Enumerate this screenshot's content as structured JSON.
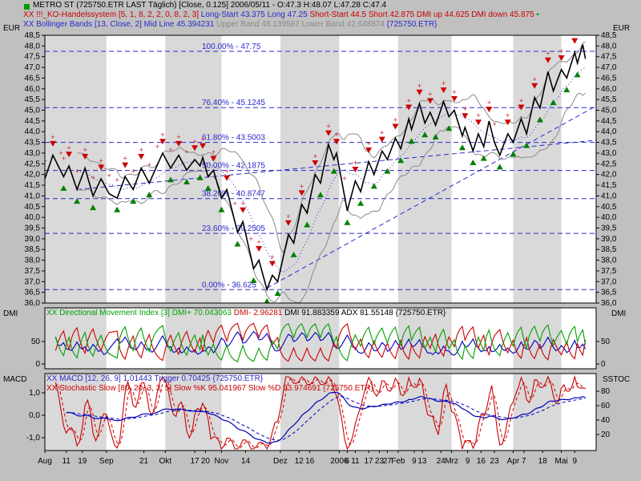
{
  "colors": {
    "background": "#c0c0c0",
    "plot_bg": "#ffffff",
    "stripe": "#d9d9d9",
    "price": "#000000",
    "bollinger_band": "#8a8a8a",
    "bollinger_mid": "#2929cc",
    "fib": "#2929cc",
    "trend": "#2929cc",
    "signal_green": "#008000",
    "signal_red": "#cc0000",
    "plus_mark": "#cc2222",
    "dmi_plus": "#00a000",
    "dmi_minus": "#cc0000",
    "adx": "#0000bb",
    "macd": "#0000bb",
    "trigger": "#0000bb",
    "stoch_k": "#cc0000",
    "stoch_d": "#cc0000",
    "marker_square": "#00a000"
  },
  "panels": {
    "main": {
      "left_label": "EUR",
      "right_label": "EUR"
    },
    "dmi": {
      "left_label": "DMI",
      "right_label": "DMI"
    },
    "macd": {
      "left_label": "MACD",
      "right_label": "SSTOC"
    }
  },
  "header": {
    "lines": {
      "price": {
        "segments": [
          {
            "text": "METRO ST (725750.ETR LAST Täglich) [Close, 0.125]  2006/05/11 - O:47.3 H:48.07 L:47.28 C:47.4",
            "color": "#000000"
          }
        ]
      },
      "system": {
        "segments": [
          {
            "text": "XX !!!_KO-Handelssystem [5, 1, 8, 2, 2, 0, 8, 2, 3] ",
            "color": "#cc0000"
          },
          {
            "text": "Long-Start 43.375 Long 47.25 ",
            "color": "#2929cc"
          },
          {
            "text": "Short-Start 44.5 Short 42.875 ",
            "color": "#cc0000"
          },
          {
            "text": "DMI up 44.625 ",
            "color": "#cc0000"
          },
          {
            "text": "DMI down 45.875 ",
            "color": "#cc0000"
          },
          {
            "text": "▪",
            "color": "#00a000"
          }
        ]
      },
      "bollinger": {
        "segments": [
          {
            "text": "XX Bollinger Bands [13, Close, 2] Mid Line 45.394231 ",
            "color": "#2929cc"
          },
          {
            "text": "Upper Band 48.139587 Lower Band 42.648874 ",
            "color": "#8a8a8a"
          },
          {
            "text": "{725750.ETR}",
            "color": "#2929cc"
          }
        ]
      },
      "dmi": {
        "segments": [
          {
            "text": "XX Directional Movement Index [3] DMI+ 70.043063 ",
            "color": "#00a000"
          },
          {
            "text": "DMI- 2.96281 ",
            "color": "#cc0000"
          },
          {
            "text": "DMI 91.883359 ADX 81.55148 ",
            "color": "#000000"
          },
          {
            "text": "{725750.ETR}",
            "color": "#000000"
          }
        ]
      },
      "macd": {
        "segments": [
          {
            "text": "XX MACD [12, 26, 9] 1.01443 Trigger 0.70425 {725750.ETR}",
            "color": "#2929cc"
          }
        ]
      },
      "stoch": {
        "segments": [
          {
            "text": "XX Stochastic Slow [80, 20, 3, 3, 5] Slow %K 95.041967 Slow %D 93.974691 {725750.ETR}",
            "color": "#cc0000"
          }
        ]
      }
    }
  },
  "chart_data": [
    {
      "type": "line",
      "title": "METRO ST daily close with KO-Handelssystem signals, Bollinger Bands [13,2] and Fibonacci retracements",
      "x_unit": "trading days Aug 2005 - Mai 2006",
      "ylabel": "EUR",
      "yticks": {
        "min": 36.0,
        "max": 48.5,
        "step": 0.5,
        "decimal": "comma"
      },
      "ohlc": {
        "date": "2006/05/11",
        "open": 47.3,
        "high": 48.07,
        "low": 47.28,
        "close": 47.4
      },
      "price_pivots": [
        [
          0,
          41.8
        ],
        [
          3,
          42.9
        ],
        [
          7,
          41.9
        ],
        [
          9,
          42.4
        ],
        [
          12,
          41.3
        ],
        [
          15,
          42.3
        ],
        [
          18,
          41.0
        ],
        [
          21,
          41.8
        ],
        [
          24,
          41.1
        ],
        [
          27,
          40.9
        ],
        [
          30,
          41.9
        ],
        [
          33,
          41.3
        ],
        [
          36,
          42.3
        ],
        [
          39,
          41.6
        ],
        [
          44,
          43.0
        ],
        [
          47,
          42.3
        ],
        [
          50,
          42.9
        ],
        [
          53,
          42.2
        ],
        [
          56,
          42.7
        ],
        [
          58,
          42.4
        ],
        [
          59,
          42.8
        ],
        [
          61,
          41.9
        ],
        [
          63,
          42.2
        ],
        [
          66,
          40.9
        ],
        [
          68,
          41.3
        ],
        [
          72,
          39.3
        ],
        [
          74,
          39.8
        ],
        [
          78,
          37.6
        ],
        [
          80,
          38.0
        ],
        [
          83,
          36.625
        ],
        [
          85,
          37.3
        ],
        [
          87,
          37.0
        ],
        [
          91,
          39.2
        ],
        [
          93,
          38.8
        ],
        [
          96,
          40.6
        ],
        [
          98,
          40.2
        ],
        [
          101,
          42.0
        ],
        [
          103,
          41.6
        ],
        [
          106,
          43.4
        ],
        [
          108,
          42.7
        ],
        [
          109,
          43.0
        ],
        [
          113,
          40.3
        ],
        [
          116,
          41.7
        ],
        [
          118,
          41.2
        ],
        [
          121,
          42.6
        ],
        [
          123,
          42.0
        ],
        [
          126,
          43.1
        ],
        [
          128,
          42.7
        ],
        [
          131,
          43.7
        ],
        [
          133,
          43.2
        ],
        [
          136,
          44.6
        ],
        [
          137,
          44.1
        ],
        [
          140,
          45.3
        ],
        [
          142,
          44.4
        ],
        [
          144,
          44.9
        ],
        [
          146,
          44.3
        ],
        [
          149,
          45.4
        ],
        [
          151,
          44.7
        ],
        [
          153,
          45.0
        ],
        [
          156,
          43.8
        ],
        [
          157,
          44.2
        ],
        [
          160,
          43.1
        ],
        [
          162,
          43.9
        ],
        [
          164,
          43.3
        ],
        [
          166,
          44.5
        ],
        [
          168,
          43.5
        ],
        [
          170,
          42.9
        ],
        [
          173,
          43.9
        ],
        [
          175,
          43.5
        ],
        [
          178,
          44.6
        ],
        [
          180,
          43.9
        ],
        [
          183,
          45.6
        ],
        [
          185,
          45.1
        ],
        [
          188,
          46.8
        ],
        [
          190,
          45.9
        ],
        [
          193,
          46.9
        ],
        [
          195,
          46.5
        ],
        [
          198,
          47.7
        ],
        [
          199,
          47.2
        ],
        [
          201,
          48.07
        ],
        [
          202,
          47.4
        ]
      ],
      "months": [
        {
          "name": "Aug",
          "start": 0,
          "end": 23,
          "shaded": true
        },
        {
          "name": "Sep",
          "start": 23,
          "end": 45,
          "shaded": false
        },
        {
          "name": "Okt",
          "start": 45,
          "end": 66,
          "shaded": true
        },
        {
          "name": "Nov",
          "start": 66,
          "end": 88,
          "shaded": false
        },
        {
          "name": "Dez",
          "start": 88,
          "end": 110,
          "shaded": true
        },
        {
          "name": "2006",
          "start": 110,
          "end": 132,
          "shaded": false
        },
        {
          "name": "Feb",
          "start": 132,
          "end": 152,
          "shaded": true
        },
        {
          "name": "Mrz",
          "start": 152,
          "end": 175,
          "shaded": false
        },
        {
          "name": "Apr",
          "start": 175,
          "end": 193,
          "shaded": true
        },
        {
          "name": "Mai",
          "start": 193,
          "end": 206,
          "shaded": false
        }
      ],
      "fib_levels": [
        {
          "label": "100.00% - 47.75",
          "value": 47.75
        },
        {
          "label": "76.40% - 45.1245",
          "value": 45.1245
        },
        {
          "label": "61.80% - 43.5003",
          "value": 43.5003
        },
        {
          "label": "50.00% - 42.1875",
          "value": 42.1875
        },
        {
          "label": "38.20% - 40.8747",
          "value": 40.8747
        },
        {
          "label": "23.60% - 39.2505",
          "value": 39.2505
        },
        {
          "label": "0.00% - 36.625",
          "value": 36.625
        }
      ],
      "trendlines": [
        {
          "from": [
            83,
            36.7
          ],
          "to": [
            206,
            45.2
          ]
        },
        {
          "from": [
            12,
            41.3
          ],
          "to": [
            206,
            43.6
          ]
        }
      ],
      "bollinger": {
        "period": 13,
        "source": "Close",
        "deviation": 2,
        "mid_line": 45.394231,
        "upper_band": 48.139587,
        "lower_band": 42.648874
      },
      "x_labels": [
        {
          "d": 0,
          "text": "Aug"
        },
        {
          "d": 8,
          "text": "11"
        },
        {
          "d": 14,
          "text": "19"
        },
        {
          "d": 23,
          "text": "Sep"
        },
        {
          "d": 37,
          "text": "21"
        },
        {
          "d": 45,
          "text": "Okt"
        },
        {
          "d": 56,
          "text": "17"
        },
        {
          "d": 60,
          "text": "20"
        },
        {
          "d": 66,
          "text": "Nov"
        },
        {
          "d": 75,
          "text": "14"
        },
        {
          "d": 88,
          "text": "Dez"
        },
        {
          "d": 95,
          "text": "12"
        },
        {
          "d": 99,
          "text": "16"
        },
        {
          "d": 110,
          "text": "2006"
        },
        {
          "d": 113,
          "text": "6"
        },
        {
          "d": 116,
          "text": "11"
        },
        {
          "d": 121,
          "text": "17"
        },
        {
          "d": 125,
          "text": "23"
        },
        {
          "d": 128,
          "text": "27"
        },
        {
          "d": 132,
          "text": "Feb"
        },
        {
          "d": 138,
          "text": "9"
        },
        {
          "d": 141,
          "text": "13"
        },
        {
          "d": 148,
          "text": "24"
        },
        {
          "d": 152,
          "text": "Mrz"
        },
        {
          "d": 158,
          "text": "9"
        },
        {
          "d": 163,
          "text": "16"
        },
        {
          "d": 168,
          "text": "23"
        },
        {
          "d": 175,
          "text": "Apr"
        },
        {
          "d": 179,
          "text": "7"
        },
        {
          "d": 186,
          "text": "18"
        },
        {
          "d": 193,
          "text": "Mai"
        },
        {
          "d": 198,
          "text": "9"
        }
      ]
    },
    {
      "type": "line",
      "name": "Directional Movement Index",
      "period": 3,
      "displayed_values": {
        "dmi_plus": 70.043063,
        "dmi_minus": 2.96281,
        "dmi": 91.883359,
        "adx": 81.55148
      },
      "yticks": [
        0,
        50
      ],
      "range": [
        0,
        100
      ]
    },
    {
      "type": "line",
      "name": "MACD and Stochastic Slow",
      "macd": {
        "fast": 12,
        "slow": 26,
        "signal": 9,
        "value": 1.01443,
        "trigger": 0.70425
      },
      "stochastic_slow": {
        "params": [
          80,
          20,
          3,
          3,
          5
        ],
        "slow_k": 95.041967,
        "slow_d": 93.974691
      },
      "left_yticks": [
        {
          "label": "1,0",
          "value": 1
        },
        {
          "label": "0,0",
          "value": 0
        },
        {
          "label": "-1,0",
          "value": -1
        }
      ],
      "right_yticks": [
        80,
        60,
        40,
        20
      ]
    }
  ]
}
